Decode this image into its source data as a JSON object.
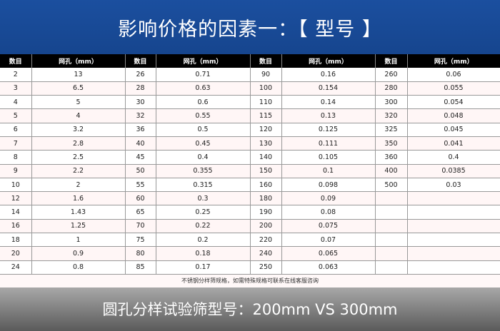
{
  "title": "影响价格的因素一：【 型号 】",
  "headers": [
    "数目",
    "网孔（mm）",
    "数目",
    "网孔（mm）",
    "数目",
    "网孔（mm）",
    "数目",
    "网孔（mm）"
  ],
  "rows": [
    [
      "2",
      "13",
      "26",
      "0.71",
      "90",
      "0.16",
      "260",
      "0.06"
    ],
    [
      "3",
      "6.5",
      "28",
      "0.63",
      "100",
      "0.154",
      "280",
      "0.055"
    ],
    [
      "4",
      "5",
      "30",
      "0.6",
      "110",
      "0.14",
      "300",
      "0.054"
    ],
    [
      "5",
      "4",
      "32",
      "0.55",
      "115",
      "0.13",
      "320",
      "0.048"
    ],
    [
      "6",
      "3.2",
      "36",
      "0.5",
      "120",
      "0.125",
      "325",
      "0.045"
    ],
    [
      "7",
      "2.8",
      "40",
      "0.45",
      "130",
      "0.111",
      "350",
      "0.041"
    ],
    [
      "8",
      "2.5",
      "45",
      "0.4",
      "140",
      "0.105",
      "360",
      "0.4"
    ],
    [
      "9",
      "2.2",
      "50",
      "0.355",
      "150",
      "0.1",
      "400",
      "0.0385"
    ],
    [
      "10",
      "2",
      "55",
      "0.315",
      "160",
      "0.098",
      "500",
      "0.03"
    ],
    [
      "12",
      "1.6",
      "60",
      "0.3",
      "180",
      "0.09",
      "",
      ""
    ],
    [
      "14",
      "1.43",
      "65",
      "0.25",
      "190",
      "0.08",
      "",
      ""
    ],
    [
      "16",
      "1.25",
      "70",
      "0.22",
      "200",
      "0.075",
      "",
      ""
    ],
    [
      "18",
      "1",
      "75",
      "0.2",
      "220",
      "0.07",
      "",
      ""
    ],
    [
      "20",
      "0.9",
      "80",
      "0.18",
      "240",
      "0.065",
      "",
      ""
    ],
    [
      "24",
      "0.8",
      "85",
      "0.17",
      "250",
      "0.063",
      "",
      ""
    ]
  ],
  "note": "不锈钢分样筛规格，如需特殊规格可联系在线客服咨询",
  "footer": "圆孔分样试验筛型号：200mm VS 300mm"
}
